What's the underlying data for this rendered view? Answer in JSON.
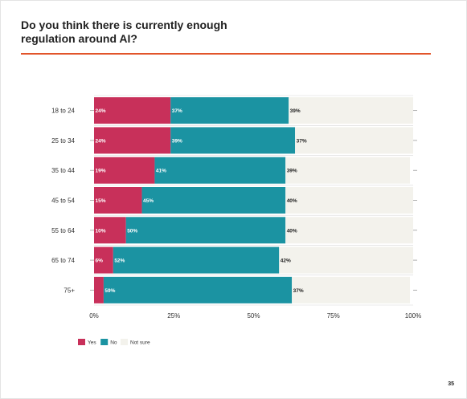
{
  "title": "Do you think there is currently enough regulation around AI?",
  "page_number": "35",
  "colors": {
    "yes": "#c8305a",
    "no": "#1b93a2",
    "not_sure": "#f3f2ec",
    "accent_rule": "#e2552b",
    "gridline": "#d8d8d8"
  },
  "chart_data": {
    "type": "bar",
    "orientation": "horizontal",
    "stacked": true,
    "categories": [
      "18 to 24",
      "25 to 34",
      "35 to 44",
      "45 to 54",
      "55 to 64",
      "65 to 74",
      "75+"
    ],
    "series": [
      {
        "name": "Yes",
        "values": [
          24,
          24,
          19,
          15,
          10,
          6,
          3
        ],
        "labels": [
          "24%",
          "24%",
          "19%",
          "15%",
          "10%",
          "6%",
          ""
        ]
      },
      {
        "name": "No",
        "values": [
          37,
          39,
          41,
          45,
          50,
          52,
          59
        ],
        "labels": [
          "37%",
          "39%",
          "41%",
          "45%",
          "50%",
          "52%",
          "59%"
        ]
      },
      {
        "name": "Not sure",
        "values": [
          39,
          37,
          39,
          40,
          40,
          42,
          37
        ],
        "labels": [
          "39%",
          "37%",
          "39%",
          "40%",
          "40%",
          "42%",
          "37%"
        ]
      }
    ],
    "xlim": [
      0,
      100
    ],
    "xticks": [
      "0%",
      "25%",
      "50%",
      "75%",
      "100%"
    ],
    "grid": true,
    "legend": "bottom-left"
  }
}
